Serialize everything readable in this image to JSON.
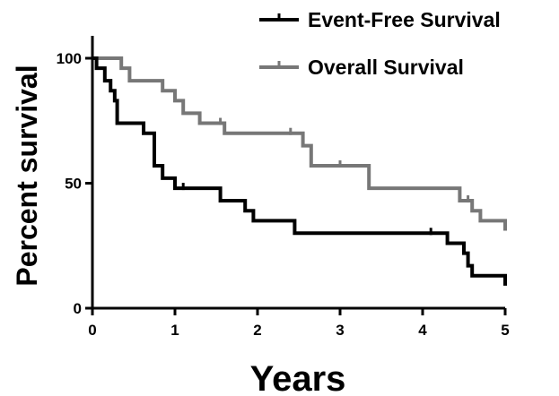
{
  "chart_data": {
    "type": "line",
    "step": true,
    "title": "",
    "xlabel": "Years",
    "ylabel": "Percent survival",
    "xlim": [
      0,
      5
    ],
    "ylim": [
      0,
      100
    ],
    "xticks": [
      "0",
      "1",
      "2",
      "3",
      "4",
      "5"
    ],
    "yticks": [
      "0",
      "50",
      "100"
    ],
    "grid": false,
    "legend": "top-right",
    "series": [
      {
        "name": "Event-Free Survival",
        "color": "#000000",
        "x": [
          0,
          0.05,
          0.15,
          0.22,
          0.27,
          0.3,
          0.48,
          0.62,
          0.75,
          0.85,
          1.0,
          1.2,
          1.55,
          1.85,
          1.95,
          2.45,
          4.3,
          4.5,
          4.55,
          4.6,
          5.0
        ],
        "y": [
          100,
          96,
          91,
          87,
          83,
          74,
          74,
          70,
          57,
          52,
          48,
          48,
          43,
          39,
          35,
          30,
          26,
          22,
          17,
          13,
          9
        ],
        "censored": [
          {
            "x": 1.1,
            "y": 48
          },
          {
            "x": 1.55,
            "y": 43
          },
          {
            "x": 4.1,
            "y": 30
          }
        ]
      },
      {
        "name": "Overall Survival",
        "color": "#777777",
        "x": [
          0,
          0.35,
          0.45,
          0.85,
          1.0,
          1.1,
          1.3,
          1.6,
          2.55,
          2.65,
          3.35,
          4.45,
          4.6,
          4.7,
          5.0
        ],
        "y": [
          100,
          96,
          91,
          87,
          83,
          78,
          74,
          70,
          65,
          57,
          48,
          43,
          39,
          35,
          31
        ],
        "censored": [
          {
            "x": 1.55,
            "y": 74
          },
          {
            "x": 2.4,
            "y": 70
          },
          {
            "x": 3.0,
            "y": 57
          },
          {
            "x": 4.55,
            "y": 43
          }
        ]
      }
    ]
  }
}
